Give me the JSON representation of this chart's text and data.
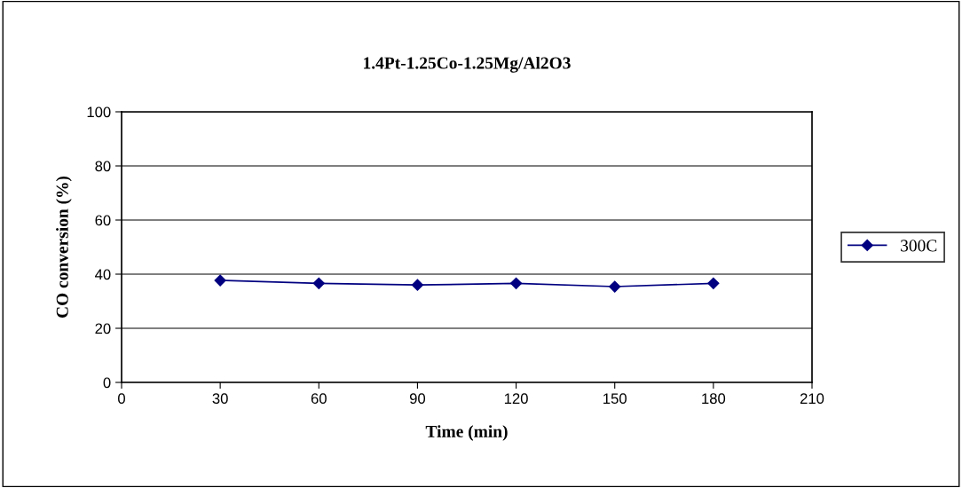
{
  "chart_data": {
    "type": "line",
    "title": "1.4Pt-1.25Co-1.25Mg/Al2O3",
    "xlabel": "Time (min)",
    "ylabel": "CO conversion (%)",
    "x": [
      30,
      60,
      90,
      120,
      150,
      180
    ],
    "series": [
      {
        "name": "300C",
        "color": "#000080",
        "values": [
          37.7,
          36.6,
          36.0,
          36.6,
          35.4,
          36.6
        ]
      }
    ],
    "xlim": [
      0,
      210
    ],
    "xticks": [
      0,
      30,
      60,
      90,
      120,
      150,
      180,
      210
    ],
    "ylim": [
      0,
      100
    ],
    "yticks": [
      0,
      20,
      40,
      60,
      80,
      100
    ],
    "grid": "y",
    "legend": "right",
    "marker": "diamond",
    "line_style": "solid"
  }
}
